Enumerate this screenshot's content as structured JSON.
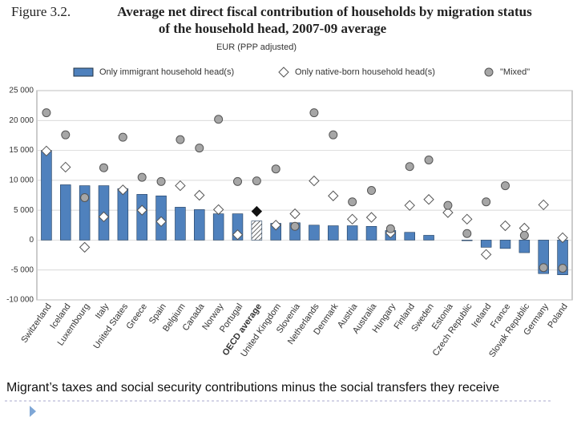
{
  "chart_data": {
    "type": "bar-dot",
    "figure_label": "Figure 3.2.",
    "title": "Average net direct fiscal contribution of households by migration status of the household head, 2007-09 average",
    "subtitle": "EUR (PPP adjusted)",
    "caption": "Migrant’s taxes and social security contributions minus the social transfers they receive",
    "categories": [
      "Switzerland",
      "Iceland",
      "Luxembourg",
      "Italy",
      "United States",
      "Greece",
      "Spain",
      "Belgium",
      "Canada",
      "Norway",
      "Portugal",
      "OECD average",
      "United Kingdom",
      "Slovenia",
      "Netherlands",
      "Denmark",
      "Austria",
      "Australia",
      "Hungary",
      "Finland",
      "Sweden",
      "Estonia",
      "Czech Republic",
      "Ireland",
      "France",
      "Slovak Republic",
      "Germany",
      "Poland"
    ],
    "highlight": 11,
    "series": [
      {
        "name": "Only immigrant household head(s)",
        "mark": "bar",
        "color": "#4f81bd",
        "values": [
          15000,
          9250,
          9100,
          9100,
          8600,
          7650,
          7400,
          5500,
          5100,
          4400,
          4400,
          3200,
          2800,
          2900,
          2500,
          2400,
          2400,
          2300,
          1600,
          1300,
          800,
          0,
          -100,
          -1200,
          -1400,
          -2100,
          -5600,
          -5800
        ]
      },
      {
        "name": "Only native-born household head(s)",
        "mark": "diamond",
        "color": "#ffffff",
        "values": [
          14900,
          12200,
          -1200,
          3900,
          8400,
          5000,
          3100,
          9100,
          7500,
          5100,
          900,
          4800,
          2500,
          4400,
          9900,
          7400,
          3500,
          3800,
          1200,
          5800,
          6800,
          4600,
          3500,
          -2400,
          2400,
          2000,
          5900,
          400
        ]
      },
      {
        "name": "\"Mixed\"",
        "mark": "circle",
        "color": "#a6a6a6",
        "values": [
          21300,
          17600,
          7100,
          12100,
          17200,
          10500,
          9800,
          16800,
          15400,
          20200,
          9800,
          9900,
          11900,
          2300,
          21300,
          17600,
          6400,
          8300,
          1900,
          12300,
          13400,
          5800,
          1100,
          6400,
          9100,
          800,
          -4600,
          -4700
        ]
      }
    ],
    "ylim": [
      -10000,
      25000
    ],
    "yticks": [
      {
        "value": -10000,
        "label": "-10 000"
      },
      {
        "value": -5000,
        "label": "-5 000"
      },
      0,
      {
        "value": 5000,
        "label": "5 000"
      },
      {
        "value": 10000,
        "label": "10 000"
      },
      {
        "value": 15000,
        "label": "15 000"
      },
      {
        "value": 20000,
        "label": "20 000"
      },
      {
        "value": 25000,
        "label": "25 000"
      }
    ]
  }
}
